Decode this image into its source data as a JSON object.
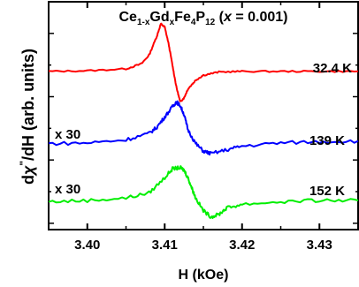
{
  "chart_data": {
    "type": "line",
    "title": {
      "base": "Ce",
      "sub1": "1-x",
      "mid1": "Gd",
      "sub2": "x",
      "mid2": "Fe",
      "sub3": "4",
      "mid3": "P",
      "sub4": "12",
      "open": " (",
      "xvar": "x",
      "close": " = 0.001)"
    },
    "xlabel": "H (kOe)",
    "ylabel": {
      "d": "d",
      "chi": "χ",
      "prime": "\"",
      "rest": "/dH (arb. units)"
    },
    "xlim": [
      3.395,
      3.435
    ],
    "ylim": [
      -0.5,
      17.5
    ],
    "x_ticks": [
      "3.40",
      "3.41",
      "3.42",
      "3.43"
    ],
    "grid": false,
    "series": [
      {
        "name": "32.4 K",
        "color": "#ff0000",
        "scale_label": "",
        "x": [
          3.395,
          3.4,
          3.405,
          3.407,
          3.408,
          3.409,
          3.4095,
          3.41,
          3.4105,
          3.411,
          3.4115,
          3.412,
          3.4125,
          3.413,
          3.414,
          3.415,
          3.417,
          3.42,
          3.425,
          3.43,
          3.435
        ],
        "y": [
          12.0,
          12.05,
          12.2,
          12.6,
          13.3,
          14.8,
          15.75,
          15.5,
          14.2,
          12.5,
          10.8,
          9.6,
          9.9,
          10.6,
          11.3,
          11.7,
          11.95,
          12.0,
          12.0,
          12.0,
          12.0
        ]
      },
      {
        "name": "139 K",
        "color": "#0000ff",
        "scale_label": "x 30",
        "x": [
          3.395,
          3.4,
          3.405,
          3.408,
          3.409,
          3.41,
          3.411,
          3.4115,
          3.412,
          3.4125,
          3.413,
          3.414,
          3.415,
          3.416,
          3.418,
          3.42,
          3.425,
          3.43,
          3.435
        ],
        "y": [
          6.3,
          6.35,
          6.6,
          7.1,
          7.6,
          8.4,
          9.2,
          9.6,
          9.3,
          8.6,
          7.4,
          6.3,
          5.7,
          5.5,
          5.8,
          6.1,
          6.35,
          6.45,
          6.5
        ]
      },
      {
        "name": "152 K",
        "color": "#00ee00",
        "scale_label": "x 30",
        "x": [
          3.395,
          3.4,
          3.405,
          3.408,
          3.41,
          3.411,
          3.412,
          3.4125,
          3.413,
          3.4135,
          3.414,
          3.415,
          3.416,
          3.417,
          3.418,
          3.42,
          3.425,
          3.43,
          3.435
        ],
        "y": [
          1.7,
          1.8,
          2.0,
          2.4,
          3.6,
          4.3,
          4.4,
          4.2,
          3.6,
          2.8,
          2.0,
          1.0,
          0.5,
          0.7,
          1.2,
          1.5,
          1.7,
          1.8,
          1.8
        ]
      }
    ]
  }
}
